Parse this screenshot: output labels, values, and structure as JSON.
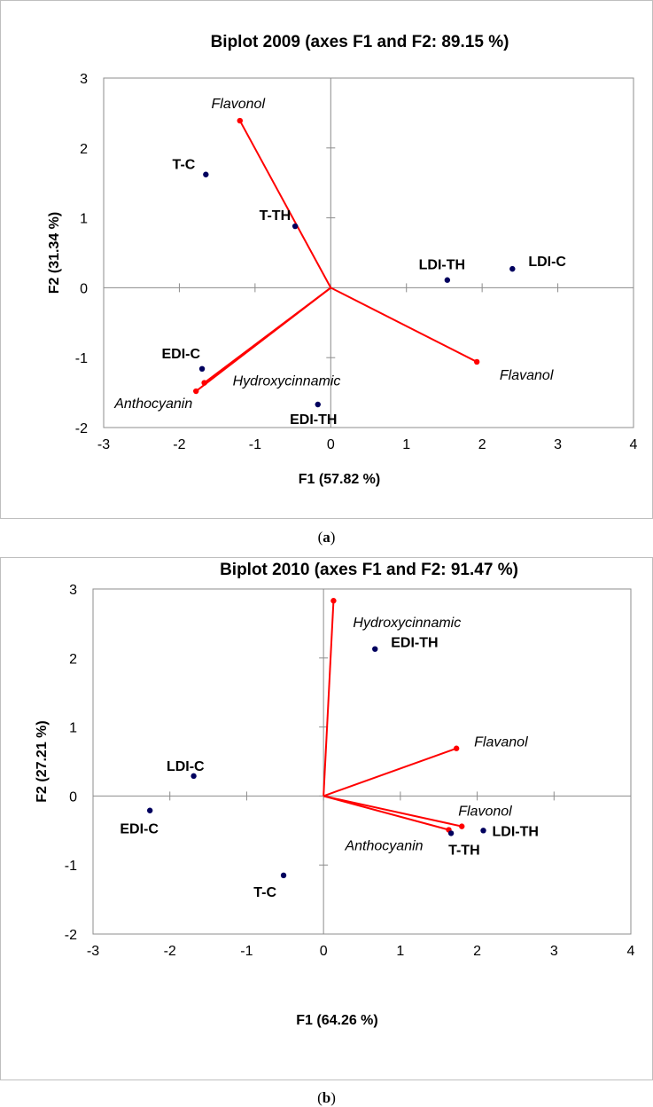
{
  "colors": {
    "observation": "#00005e",
    "variable": "#ff0000",
    "axis": "#8c8c8c"
  },
  "chart_data": [
    {
      "type": "scatter",
      "title": "Biplot 2009 (axes F1 and F2: 89.15 %)",
      "xlabel": "F1 (57.82 %)",
      "ylabel": "F2 (31.34 %)",
      "xlim": [
        -3,
        4
      ],
      "ylim": [
        -2,
        3
      ],
      "xticks": [
        "-3",
        "-2",
        "-1",
        "0",
        "1",
        "2",
        "3",
        "4"
      ],
      "yticks": [
        "-2",
        "-1",
        "0",
        "1",
        "2",
        "3"
      ],
      "caption": "a",
      "observations": [
        {
          "name": "T-C",
          "x": -1.65,
          "y": 1.62
        },
        {
          "name": "T-TH",
          "x": -0.47,
          "y": 0.88
        },
        {
          "name": "LDI-TH",
          "x": 1.54,
          "y": 0.11
        },
        {
          "name": "LDI-C",
          "x": 2.4,
          "y": 0.27
        },
        {
          "name": "EDI-C",
          "x": -1.7,
          "y": -1.16
        },
        {
          "name": "EDI-TH",
          "x": -0.17,
          "y": -1.67
        }
      ],
      "variables": [
        {
          "name": "Flavonol",
          "x": -1.2,
          "y": 2.39
        },
        {
          "name": "Flavanol",
          "x": 1.93,
          "y": -1.06
        },
        {
          "name": "Hydroxycinnamic",
          "x": -1.67,
          "y": -1.36
        },
        {
          "name": "Anthocyanin",
          "x": -1.78,
          "y": -1.48
        }
      ]
    },
    {
      "type": "scatter",
      "title": "Biplot 2010 (axes F1 and F2: 91.47 %)",
      "xlabel": "F1 (64.26 %)",
      "ylabel": "F2 (27.21 %)",
      "xlim": [
        -3,
        4
      ],
      "ylim": [
        -2,
        3
      ],
      "xticks": [
        "-3",
        "-2",
        "-1",
        "0",
        "1",
        "2",
        "3",
        "4"
      ],
      "yticks": [
        "-2",
        "-1",
        "0",
        "1",
        "2",
        "3"
      ],
      "caption": "b",
      "observations": [
        {
          "name": "EDI-TH",
          "x": 0.67,
          "y": 2.13
        },
        {
          "name": "LDI-C",
          "x": -1.69,
          "y": 0.29
        },
        {
          "name": "EDI-C",
          "x": -2.26,
          "y": -0.21
        },
        {
          "name": "T-C",
          "x": -0.52,
          "y": -1.15
        },
        {
          "name": "T-TH",
          "x": 1.66,
          "y": -0.54
        },
        {
          "name": "LDI-TH",
          "x": 2.08,
          "y": -0.5
        }
      ],
      "variables": [
        {
          "name": "Hydroxycinnamic",
          "x": 0.13,
          "y": 2.83
        },
        {
          "name": "Flavanol",
          "x": 1.73,
          "y": 0.69
        },
        {
          "name": "Flavonol",
          "x": 1.8,
          "y": -0.44
        },
        {
          "name": "Anthocyanin",
          "x": 1.63,
          "y": -0.49
        }
      ]
    }
  ]
}
